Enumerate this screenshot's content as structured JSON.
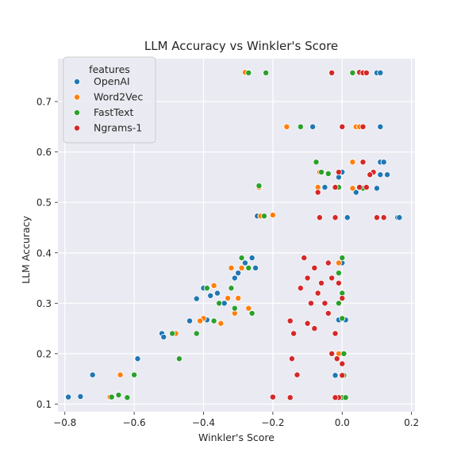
{
  "chart_data": {
    "type": "scatter",
    "title": "LLM Accuracy vs Winkler's Score",
    "xlabel": "Winkler's Score",
    "ylabel": "LLM Accuracy",
    "xlim": [
      -0.82,
      0.21
    ],
    "ylim": [
      0.085,
      0.785
    ],
    "xticks": [
      -0.8,
      -0.6,
      -0.4,
      -0.2,
      0.0,
      0.2
    ],
    "xtick_labels": [
      "−0.8",
      "−0.6",
      "−0.4",
      "−0.2",
      "0.0",
      "0.2"
    ],
    "yticks": [
      0.1,
      0.2,
      0.3,
      0.4,
      0.5,
      0.6,
      0.7
    ],
    "ytick_labels": [
      "0.1",
      "0.2",
      "0.3",
      "0.4",
      "0.5",
      "0.6",
      "0.7"
    ],
    "grid": true,
    "legend": {
      "title": "features",
      "position": "top-left"
    },
    "series": [
      {
        "name": "OpenAI",
        "color": "#1f77b4",
        "points": [
          [
            -0.79,
            0.114
          ],
          [
            -0.755,
            0.115
          ],
          [
            -0.72,
            0.158
          ],
          [
            -0.59,
            0.19
          ],
          [
            -0.52,
            0.24
          ],
          [
            -0.515,
            0.233
          ],
          [
            -0.44,
            0.265
          ],
          [
            -0.39,
            0.267
          ],
          [
            -0.42,
            0.309
          ],
          [
            -0.4,
            0.33
          ],
          [
            -0.38,
            0.315
          ],
          [
            -0.36,
            0.32
          ],
          [
            -0.34,
            0.3
          ],
          [
            -0.32,
            0.33
          ],
          [
            -0.31,
            0.35
          ],
          [
            -0.3,
            0.36
          ],
          [
            -0.28,
            0.38
          ],
          [
            -0.26,
            0.39
          ],
          [
            -0.25,
            0.37
          ],
          [
            -0.245,
            0.473
          ],
          [
            -0.085,
            0.65
          ],
          [
            -0.05,
            0.53
          ],
          [
            -0.01,
            0.55
          ],
          [
            0.0,
            0.56
          ],
          [
            0.04,
            0.52
          ],
          [
            0.1,
            0.528
          ],
          [
            0.11,
            0.58
          ],
          [
            0.12,
            0.58
          ],
          [
            0.13,
            0.555
          ],
          [
            0.16,
            0.47
          ],
          [
            0.165,
            0.47
          ],
          [
            0.11,
            0.65
          ],
          [
            0.1,
            0.757
          ],
          [
            0.11,
            0.757
          ],
          [
            -0.01,
            0.267
          ],
          [
            0.01,
            0.267
          ],
          [
            -0.02,
            0.157
          ],
          [
            0.0,
            0.113
          ],
          [
            0.0,
            0.38
          ],
          [
            -0.01,
            0.3
          ],
          [
            0.0,
            0.2
          ],
          [
            0.015,
            0.47
          ],
          [
            0.11,
            0.555
          ],
          [
            -0.27,
            0.758
          ]
        ]
      },
      {
        "name": "Word2Vec",
        "color": "#ff7f0e",
        "points": [
          [
            -0.67,
            0.114
          ],
          [
            -0.64,
            0.158
          ],
          [
            -0.47,
            0.19
          ],
          [
            -0.48,
            0.24
          ],
          [
            -0.4,
            0.27
          ],
          [
            -0.37,
            0.335
          ],
          [
            -0.32,
            0.37
          ],
          [
            -0.33,
            0.31
          ],
          [
            -0.3,
            0.31
          ],
          [
            -0.31,
            0.28
          ],
          [
            -0.27,
            0.29
          ],
          [
            -0.29,
            0.37
          ],
          [
            -0.24,
            0.53
          ],
          [
            -0.235,
            0.473
          ],
          [
            -0.2,
            0.475
          ],
          [
            -0.16,
            0.65
          ],
          [
            -0.065,
            0.56
          ],
          [
            -0.07,
            0.53
          ],
          [
            -0.02,
            0.531
          ],
          [
            0.04,
            0.65
          ],
          [
            0.05,
            0.65
          ],
          [
            0.03,
            0.757
          ],
          [
            0.055,
            0.757
          ],
          [
            -0.01,
            0.38
          ],
          [
            0.0,
            0.39
          ],
          [
            0.0,
            0.113
          ],
          [
            -0.01,
            0.2
          ],
          [
            -0.28,
            0.758
          ],
          [
            -0.35,
            0.26
          ],
          [
            -0.41,
            0.265
          ],
          [
            0.03,
            0.528
          ],
          [
            0.03,
            0.58
          ]
        ]
      },
      {
        "name": "FastText",
        "color": "#2ca02c",
        "points": [
          [
            -0.665,
            0.114
          ],
          [
            -0.645,
            0.118
          ],
          [
            -0.62,
            0.113
          ],
          [
            -0.6,
            0.158
          ],
          [
            -0.47,
            0.19
          ],
          [
            -0.49,
            0.24
          ],
          [
            -0.42,
            0.24
          ],
          [
            -0.37,
            0.265
          ],
          [
            -0.39,
            0.33
          ],
          [
            -0.355,
            0.3
          ],
          [
            -0.32,
            0.33
          ],
          [
            -0.29,
            0.39
          ],
          [
            -0.27,
            0.37
          ],
          [
            -0.31,
            0.29
          ],
          [
            -0.26,
            0.28
          ],
          [
            -0.225,
            0.473
          ],
          [
            -0.24,
            0.533
          ],
          [
            -0.22,
            0.757
          ],
          [
            -0.27,
            0.757
          ],
          [
            -0.12,
            0.65
          ],
          [
            -0.075,
            0.58
          ],
          [
            -0.06,
            0.56
          ],
          [
            -0.04,
            0.557
          ],
          [
            0.0,
            0.32
          ],
          [
            -0.01,
            0.36
          ],
          [
            0.0,
            0.39
          ],
          [
            0.0,
            0.113
          ],
          [
            0.01,
            0.113
          ],
          [
            -0.02,
            0.24
          ],
          [
            0.005,
            0.2
          ],
          [
            0.005,
            0.157
          ],
          [
            0.03,
            0.757
          ],
          [
            0.08,
            0.555
          ],
          [
            0.06,
            0.528
          ],
          [
            -0.01,
            0.53
          ],
          [
            -0.01,
            0.3
          ],
          [
            0.0,
            0.27
          ]
        ]
      },
      {
        "name": "Ngrams-1",
        "color": "#d62728",
        "points": [
          [
            -0.2,
            0.114
          ],
          [
            -0.15,
            0.113
          ],
          [
            -0.145,
            0.19
          ],
          [
            -0.13,
            0.158
          ],
          [
            -0.15,
            0.265
          ],
          [
            -0.14,
            0.24
          ],
          [
            -0.12,
            0.33
          ],
          [
            -0.11,
            0.39
          ],
          [
            -0.1,
            0.35
          ],
          [
            -0.09,
            0.3
          ],
          [
            -0.08,
            0.37
          ],
          [
            -0.07,
            0.32
          ],
          [
            -0.06,
            0.34
          ],
          [
            -0.05,
            0.3
          ],
          [
            -0.04,
            0.28
          ],
          [
            -0.03,
            0.35
          ],
          [
            -0.02,
            0.24
          ],
          [
            -0.015,
            0.19
          ],
          [
            -0.01,
            0.113
          ],
          [
            0.0,
            0.157
          ],
          [
            -0.065,
            0.47
          ],
          [
            -0.02,
            0.47
          ],
          [
            -0.07,
            0.52
          ],
          [
            -0.02,
            0.53
          ],
          [
            0.0,
            0.65
          ],
          [
            0.05,
            0.758
          ],
          [
            0.06,
            0.757
          ],
          [
            0.07,
            0.757
          ],
          [
            0.06,
            0.58
          ],
          [
            0.09,
            0.56
          ],
          [
            0.08,
            0.555
          ],
          [
            0.07,
            0.53
          ],
          [
            0.1,
            0.47
          ],
          [
            0.12,
            0.47
          ],
          [
            -0.03,
            0.757
          ],
          [
            -0.01,
            0.56
          ],
          [
            -0.04,
            0.38
          ],
          [
            -0.01,
            0.34
          ],
          [
            0.0,
            0.31
          ],
          [
            -0.08,
            0.25
          ],
          [
            -0.1,
            0.26
          ],
          [
            -0.03,
            0.2
          ],
          [
            -0.02,
            0.113
          ],
          [
            0.0,
            0.18
          ],
          [
            0.05,
            0.53
          ],
          [
            0.06,
            0.65
          ]
        ]
      }
    ]
  }
}
